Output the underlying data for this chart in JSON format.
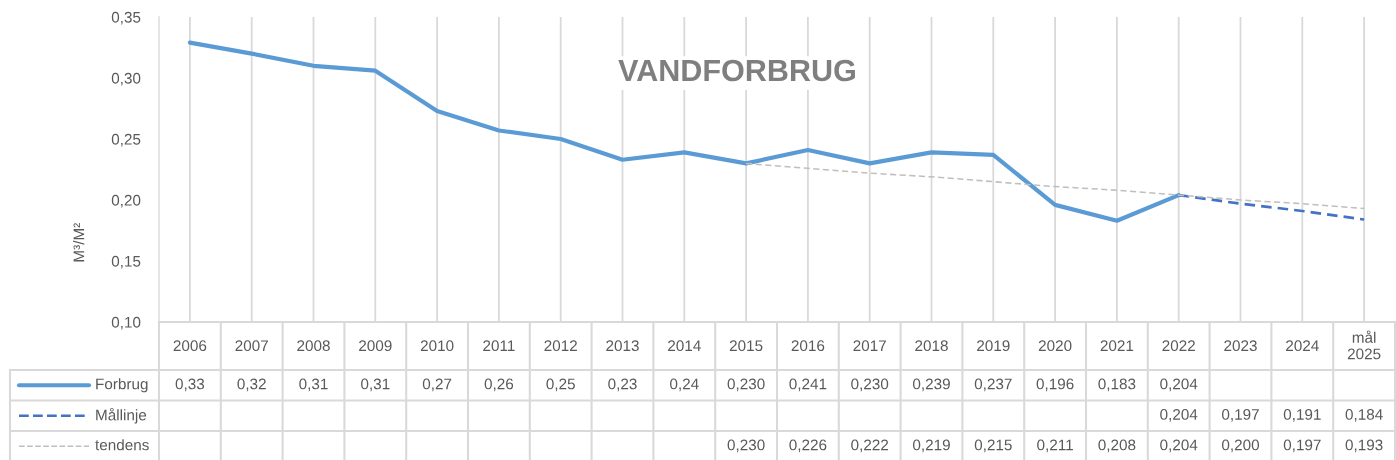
{
  "chart_data": {
    "type": "line",
    "title": "VANDFORBRUG",
    "ylabel": "M³/M²",
    "categories": [
      "2006",
      "2007",
      "2008",
      "2009",
      "2010",
      "2011",
      "2012",
      "2013",
      "2014",
      "2015",
      "2016",
      "2017",
      "2018",
      "2019",
      "2020",
      "2021",
      "2022",
      "2023",
      "2024",
      "mål\n2025"
    ],
    "series": [
      {
        "name": "Forbrug",
        "color": "#5b9bd5",
        "line_style": "solid",
        "values": [
          0.329,
          0.32,
          0.31,
          0.306,
          0.273,
          0.257,
          0.25,
          0.233,
          0.239,
          0.23,
          0.241,
          0.23,
          0.239,
          0.237,
          0.196,
          0.183,
          0.204,
          null,
          null,
          null
        ],
        "value_labels": [
          "0,33",
          "0,32",
          "0,31",
          "0,31",
          "0,27",
          "0,26",
          "0,25",
          "0,23",
          "0,24",
          "0,230",
          "0,241",
          "0,230",
          "0,239",
          "0,237",
          "0,196",
          "0,183",
          "0,204",
          null,
          null,
          null
        ]
      },
      {
        "name": "Mållinje",
        "color": "#4472c4",
        "line_style": "dashed",
        "values": [
          null,
          null,
          null,
          null,
          null,
          null,
          null,
          null,
          null,
          null,
          null,
          null,
          null,
          null,
          null,
          null,
          0.204,
          0.197,
          0.191,
          0.184
        ],
        "value_labels": [
          null,
          null,
          null,
          null,
          null,
          null,
          null,
          null,
          null,
          null,
          null,
          null,
          null,
          null,
          null,
          null,
          "0,204",
          "0,197",
          "0,191",
          "0,184"
        ]
      },
      {
        "name": "tendens",
        "color": "#bfbfbf",
        "line_style": "dashed",
        "values": [
          null,
          null,
          null,
          null,
          null,
          null,
          null,
          null,
          null,
          0.23,
          0.226,
          0.222,
          0.219,
          0.215,
          0.211,
          0.208,
          0.204,
          0.2,
          0.197,
          0.193
        ],
        "value_labels": [
          null,
          null,
          null,
          null,
          null,
          null,
          null,
          null,
          null,
          "0,230",
          "0,226",
          "0,222",
          "0,219",
          "0,215",
          "0,211",
          "0,208",
          "0,204",
          "0,200",
          "0,197",
          "0,193"
        ]
      }
    ],
    "ylim": [
      0.1,
      0.35
    ],
    "yticks": [
      {
        "value": 0.1,
        "label": "0,10"
      },
      {
        "value": 0.15,
        "label": "0,15"
      },
      {
        "value": 0.2,
        "label": "0,20"
      },
      {
        "value": 0.25,
        "label": "0,25"
      },
      {
        "value": 0.3,
        "label": "0,30"
      },
      {
        "value": 0.35,
        "label": "0,35"
      }
    ],
    "grid": "x",
    "legend": "bottom left"
  }
}
